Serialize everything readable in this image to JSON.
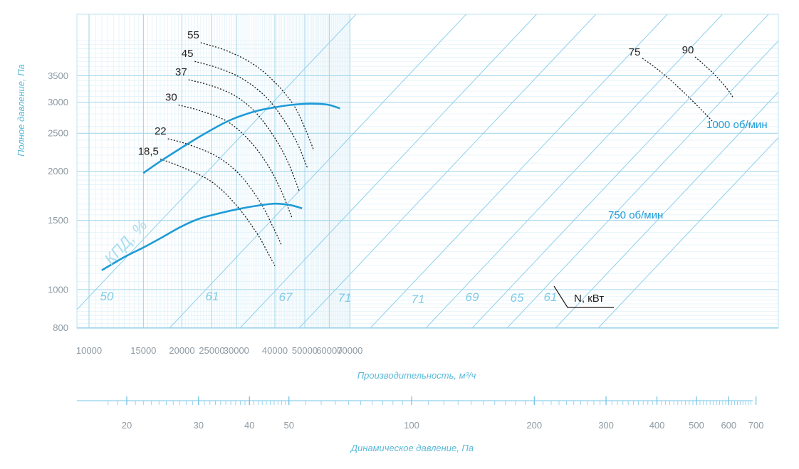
{
  "chart_data": {
    "type": "line",
    "title": "",
    "xlabel": "Производительность, м³/ч",
    "ylabel": "Полное давление, Па",
    "x_scale": "log",
    "y_scale": "log",
    "xlim": [
      10000,
      70000
    ],
    "ylim": [
      800,
      4300
    ],
    "x_ticks": [
      10000,
      15000,
      20000,
      25000,
      30000,
      40000,
      50000,
      60000,
      70000
    ],
    "x_tick_labels": [
      "10000",
      "15000",
      "20000",
      "25000",
      "30000",
      "40000",
      "50000",
      "60000",
      "70000"
    ],
    "y_ticks": [
      800,
      1000,
      1500,
      2000,
      2500,
      3000,
      3500
    ],
    "y_tick_labels": [
      "800",
      "1000",
      "1500",
      "2000",
      "2500",
      "3000",
      "3500"
    ],
    "grid": true,
    "series": [
      {
        "name": "1000 об/мин",
        "color": "#1e9bd7",
        "x": [
          15000,
          17000,
          20000,
          23000,
          27000,
          30000,
          35000,
          40000,
          45000,
          50000,
          55000,
          60000,
          65000
        ],
        "y": [
          1980,
          2120,
          2300,
          2460,
          2640,
          2740,
          2850,
          2910,
          2950,
          2970,
          2970,
          2950,
          2890
        ]
      },
      {
        "name": "750 об/мин",
        "color": "#1e9bd7",
        "x": [
          11000,
          13000,
          15000,
          17000,
          20000,
          23000,
          27000,
          30000,
          35000,
          40000,
          45000,
          49000
        ],
        "y": [
          1120,
          1210,
          1280,
          1350,
          1450,
          1520,
          1570,
          1600,
          1635,
          1655,
          1640,
          1610
        ]
      }
    ],
    "power_curves": [
      {
        "label": "18,5",
        "x": [
          17000,
          20000,
          25000,
          30000,
          35000,
          38000,
          40000
        ],
        "y": [
          2150,
          2050,
          1880,
          1640,
          1390,
          1240,
          1150
        ]
      },
      {
        "label": "22",
        "x": [
          18000,
          21000,
          26000,
          31000,
          36000,
          39500,
          42000
        ],
        "y": [
          2420,
          2340,
          2180,
          1950,
          1660,
          1440,
          1300
        ]
      },
      {
        "label": "30",
        "x": [
          19500,
          23000,
          28000,
          33000,
          38000,
          42000,
          45500
        ],
        "y": [
          2950,
          2850,
          2680,
          2400,
          2070,
          1780,
          1520
        ]
      },
      {
        "label": "37",
        "x": [
          21000,
          25000,
          30000,
          35000,
          40000,
          44000,
          48000
        ],
        "y": [
          3420,
          3300,
          3100,
          2800,
          2430,
          2120,
          1780
        ]
      },
      {
        "label": "45",
        "x": [
          22000,
          26000,
          31000,
          37000,
          42000,
          47000,
          51000
        ],
        "y": [
          3810,
          3670,
          3460,
          3120,
          2760,
          2380,
          2040
        ]
      },
      {
        "label": "55",
        "x": [
          23000,
          28000,
          34000,
          40000,
          46000,
          50000,
          53500
        ],
        "y": [
          4250,
          4050,
          3750,
          3370,
          2950,
          2580,
          2260
        ]
      }
    ],
    "efficiency_lines": [
      "50",
      "61",
      "67",
      "71",
      "71",
      "69",
      "65",
      "61",
      "75",
      "90"
    ],
    "efficiency_title": "КПД, %",
    "power_axis_label": "N, кВт",
    "secondary_axis": {
      "label": "Динамическое давление, Па",
      "ticks": [
        20,
        30,
        40,
        50,
        100,
        200,
        300,
        400,
        500,
        600,
        700
      ],
      "tick_labels": [
        "20",
        "30",
        "40",
        "50",
        "100",
        "200",
        "300",
        "400",
        "500",
        "600",
        "700"
      ],
      "min": 17,
      "max": 750,
      "scale": "log"
    }
  }
}
